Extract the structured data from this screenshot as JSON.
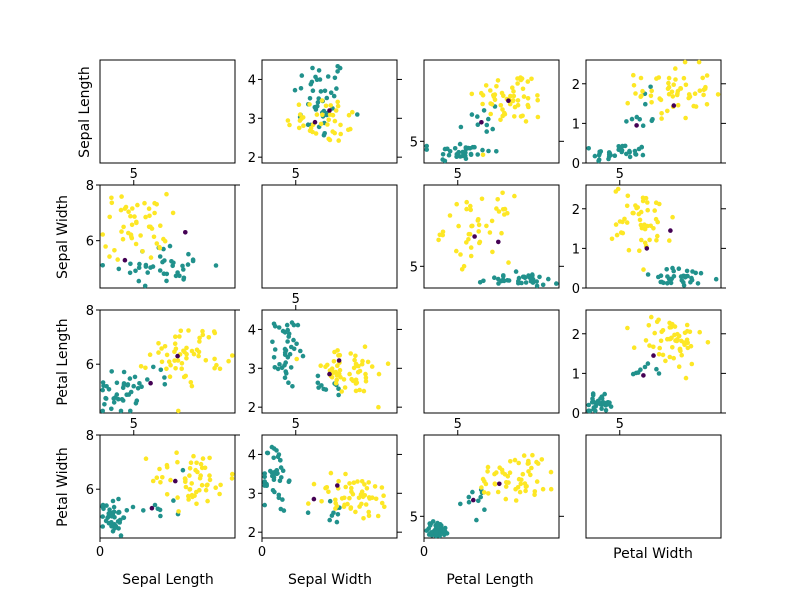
{
  "chart_data": {
    "type": "scatter",
    "layout": "4x4 scatter matrix",
    "variables": [
      "Sepal Length",
      "Sepal Width",
      "Petal Length",
      "Petal Width"
    ],
    "row_labels": [
      "Sepal Length",
      "Sepal Width",
      "Petal Length",
      "Petal Width"
    ],
    "column_labels": [
      "Sepal Length",
      "Sepal Width",
      "Petal Length",
      "Petal Width"
    ],
    "group_colors": [
      "#440154",
      "#21918c",
      "#fde725"
    ],
    "marker_size": 2.3,
    "panels": [
      {
        "row": 0,
        "col": 0,
        "empty": true
      },
      {
        "row": 0,
        "col": 1,
        "xlim": [
          1.8,
          4.6
        ],
        "ylim": [
          1.85,
          4.5
        ],
        "yticks_right": [
          2,
          3,
          4
        ],
        "yticks_left": [
          2,
          3,
          4
        ],
        "xticks_bottom": [],
        "xticks_top": [],
        "cluster_spec": [
          [
            1,
            3.0,
            3.5,
            0.28,
            0.55,
            45
          ],
          [
            2,
            3.1,
            2.95,
            0.4,
            0.3,
            40
          ]
        ],
        "fixed_points": [
          [
            0,
            2.9,
            2.9
          ],
          [
            0,
            3.2,
            3.2
          ]
        ]
      },
      {
        "row": 0,
        "col": 2,
        "xlim": [
          4.0,
          8.0
        ],
        "ylim": [
          4.2,
          8.0
        ],
        "yticks_right": [
          5
        ],
        "yticks_left": [
          5
        ],
        "xticks_bottom": [],
        "xticks_top": [],
        "cluster_spec": [
          [
            1,
            5.1,
            4.6,
            0.45,
            0.2,
            35
          ],
          [
            1,
            5.6,
            5.6,
            0.35,
            0.5,
            10
          ],
          [
            2,
            6.6,
            6.6,
            0.55,
            0.5,
            55
          ]
        ],
        "fixed_points": [
          [
            0,
            5.7,
            5.7
          ],
          [
            0,
            6.5,
            6.5
          ]
        ]
      },
      {
        "row": 0,
        "col": 3,
        "xlim": [
          4.0,
          8.0
        ],
        "ylim": [
          0.0,
          2.6
        ],
        "yticks_right": [
          0,
          1,
          2
        ],
        "yticks_left": [
          0,
          1,
          2
        ],
        "xticks_bottom": [],
        "xticks_top": [],
        "cluster_spec": [
          [
            1,
            5.0,
            0.25,
            0.4,
            0.12,
            35
          ],
          [
            1,
            5.6,
            1.2,
            0.35,
            0.3,
            10
          ],
          [
            2,
            6.6,
            1.8,
            0.55,
            0.35,
            55
          ]
        ],
        "fixed_points": [
          [
            0,
            5.5,
            0.95
          ],
          [
            0,
            6.6,
            1.45
          ]
        ]
      },
      {
        "row": 1,
        "col": 0,
        "xlim": [
          4.2,
          8.0
        ],
        "ylim": [
          4.3,
          8.0
        ],
        "yticks_right": [
          8
        ],
        "yticks_left": [
          6,
          8
        ],
        "xticks_bottom": [],
        "xticks_top": [
          5
        ],
        "cluster_spec": [
          [
            1,
            6.0,
            5.1,
            0.7,
            0.35,
            40
          ],
          [
            2,
            5.2,
            6.5,
            0.45,
            0.6,
            50
          ]
        ],
        "fixed_points": [
          [
            0,
            4.9,
            5.3
          ],
          [
            0,
            6.6,
            6.3
          ]
        ]
      },
      {
        "row": 1,
        "col": 1,
        "empty": true,
        "xticks_top": [
          5
        ]
      },
      {
        "row": 1,
        "col": 2,
        "xlim": [
          4.0,
          8.0
        ],
        "ylim": [
          4.2,
          8.0
        ],
        "yticks_right": [
          5
        ],
        "yticks_left": [
          5
        ],
        "xticks_bottom": [],
        "xticks_top": [
          5
        ],
        "cluster_spec": [
          [
            1,
            6.8,
            4.5,
            0.6,
            0.12,
            35
          ],
          [
            2,
            5.6,
            6.4,
            0.5,
            0.6,
            45
          ]
        ],
        "fixed_points": [
          [
            0,
            5.5,
            6.1
          ],
          [
            0,
            6.2,
            5.9
          ]
        ]
      },
      {
        "row": 1,
        "col": 3,
        "xlim": [
          4.0,
          8.0
        ],
        "ylim": [
          0.0,
          2.6
        ],
        "yticks_right": [
          0,
          1,
          2
        ],
        "yticks_left": [
          0,
          1,
          2
        ],
        "xticks_bottom": [],
        "xticks_top": [
          5
        ],
        "cluster_spec": [
          [
            1,
            6.8,
            0.25,
            0.6,
            0.12,
            35
          ],
          [
            2,
            5.7,
            1.7,
            0.45,
            0.45,
            50
          ]
        ],
        "fixed_points": [
          [
            0,
            5.8,
            1.0
          ],
          [
            0,
            6.5,
            1.45
          ]
        ]
      },
      {
        "row": 2,
        "col": 0,
        "xlim": [
          4.0,
          8.0
        ],
        "ylim": [
          4.2,
          8.0
        ],
        "yticks_right": [
          8
        ],
        "yticks_left": [
          6,
          8
        ],
        "xticks_bottom": [],
        "xticks_top": [],
        "cluster_spec": [
          [
            1,
            4.5,
            4.9,
            0.3,
            0.4,
            35
          ],
          [
            1,
            5.5,
            5.5,
            0.4,
            0.2,
            8
          ],
          [
            2,
            6.6,
            6.4,
            0.55,
            0.55,
            55
          ]
        ],
        "fixed_points": [
          [
            0,
            5.5,
            5.3
          ],
          [
            0,
            6.3,
            6.3
          ]
        ]
      },
      {
        "row": 2,
        "col": 1,
        "xlim": [
          1.8,
          4.6
        ],
        "ylim": [
          1.85,
          4.5
        ],
        "yticks_right": [
          2,
          3,
          4
        ],
        "yticks_left": [
          2,
          3,
          4
        ],
        "xticks_bottom": [],
        "xticks_top": [
          5
        ],
        "cluster_spec": [
          [
            1,
            2.3,
            3.4,
            0.12,
            0.45,
            40
          ],
          [
            1,
            3.0,
            2.4,
            0.3,
            0.3,
            10
          ],
          [
            2,
            3.6,
            2.9,
            0.45,
            0.3,
            55
          ]
        ],
        "fixed_points": [
          [
            0,
            3.2,
            2.85
          ],
          [
            0,
            3.4,
            3.2
          ]
        ]
      },
      {
        "row": 2,
        "col": 2,
        "empty": true
      },
      {
        "row": 2,
        "col": 3,
        "xlim": [
          4.0,
          8.0
        ],
        "ylim": [
          0.0,
          2.6
        ],
        "yticks_right": [
          0,
          1,
          2
        ],
        "yticks_left": [
          0,
          1,
          2
        ],
        "xticks_bottom": [],
        "xticks_top": [],
        "cluster_spec": [
          [
            1,
            4.4,
            0.25,
            0.18,
            0.1,
            40
          ],
          [
            1,
            5.6,
            1.05,
            0.25,
            0.08,
            8
          ],
          [
            2,
            6.5,
            1.8,
            0.5,
            0.35,
            55
          ]
        ],
        "fixed_points": [
          [
            0,
            5.7,
            0.95
          ],
          [
            0,
            6.0,
            1.45
          ]
        ]
      },
      {
        "row": 3,
        "col": 0,
        "xlim": [
          0.0,
          2.6
        ],
        "ylim": [
          4.2,
          8.0
        ],
        "yticks_right": [
          8
        ],
        "yticks_left": [
          6,
          8
        ],
        "xticks_bottom": [
          0
        ],
        "xticks_top": [
          5
        ],
        "cluster_spec": [
          [
            1,
            0.25,
            5.0,
            0.12,
            0.35,
            40
          ],
          [
            1,
            1.1,
            5.5,
            0.3,
            0.35,
            10
          ],
          [
            2,
            1.8,
            6.4,
            0.4,
            0.55,
            55
          ]
        ],
        "fixed_points": [
          [
            0,
            1.0,
            5.3
          ],
          [
            0,
            1.45,
            6.3
          ]
        ]
      },
      {
        "row": 3,
        "col": 1,
        "xlim": [
          0.0,
          2.6
        ],
        "ylim": [
          1.85,
          4.5
        ],
        "yticks_right": [
          2,
          3,
          4
        ],
        "yticks_left": [
          2,
          3,
          4
        ],
        "xticks_bottom": [
          0
        ],
        "xticks_top": [
          5
        ],
        "cluster_spec": [
          [
            1,
            0.25,
            3.4,
            0.12,
            0.45,
            40
          ],
          [
            1,
            1.1,
            2.5,
            0.3,
            0.3,
            10
          ],
          [
            2,
            1.8,
            2.9,
            0.4,
            0.3,
            55
          ]
        ],
        "fixed_points": [
          [
            0,
            1.0,
            2.85
          ],
          [
            0,
            1.45,
            3.2
          ]
        ]
      },
      {
        "row": 3,
        "col": 2,
        "xlim": [
          0.0,
          2.6
        ],
        "ylim": [
          4.2,
          8.0
        ],
        "yticks_right": [
          5
        ],
        "yticks_left": [
          5
        ],
        "xticks_bottom": [
          0
        ],
        "xticks_top": [
          5
        ],
        "cluster_spec": [
          [
            1,
            0.25,
            4.5,
            0.12,
            0.15,
            40
          ],
          [
            1,
            1.1,
            5.5,
            0.15,
            0.3,
            10
          ],
          [
            2,
            1.8,
            6.5,
            0.4,
            0.45,
            55
          ]
        ],
        "fixed_points": [
          [
            0,
            0.95,
            5.6
          ],
          [
            0,
            1.45,
            6.2
          ]
        ]
      },
      {
        "row": 3,
        "col": 3,
        "empty": true,
        "xticks_top": [
          5
        ]
      }
    ]
  }
}
